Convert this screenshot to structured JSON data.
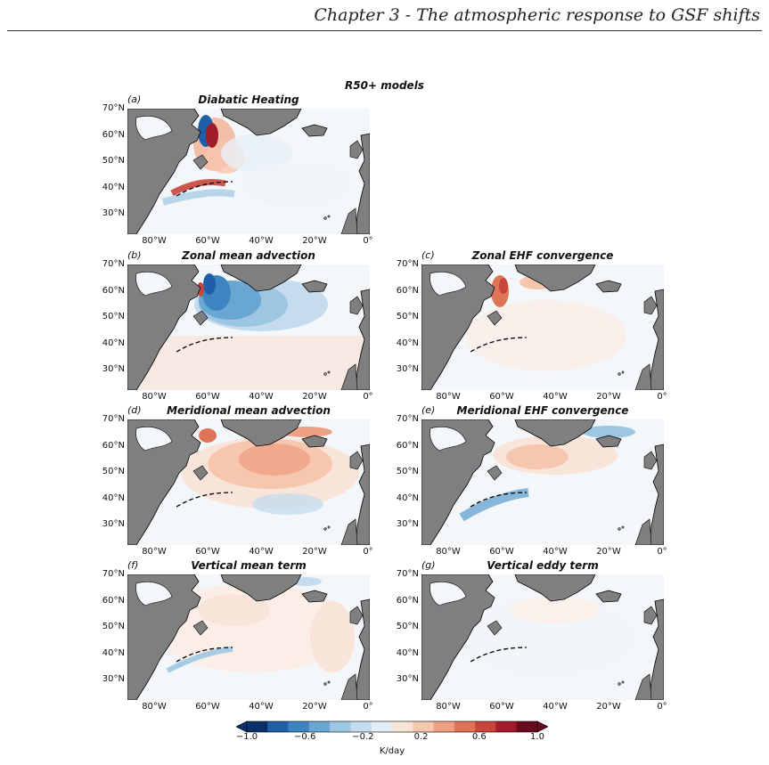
{
  "header": {
    "chapter": "Chapter 3 - The atmospheric response to GSF shifts"
  },
  "figure": {
    "suptitle": "R50+ models",
    "colors": {
      "land": "#7f7f7f",
      "ocean": "#f4f7f9",
      "dashed_front": "#000000"
    },
    "panels": [
      {
        "id": "a",
        "label": "(a)",
        "title": "Diabatic Heating",
        "yticks": [
          "70°N",
          "60°N",
          "50°N",
          "40°N",
          "30°N"
        ],
        "xticks": [
          "80°W",
          "60°W",
          "40°W",
          "20°W",
          "0°"
        ]
      },
      {
        "id": "b",
        "label": "(b)",
        "title": "Zonal mean advection",
        "yticks": [
          "70°N",
          "60°N",
          "50°N",
          "40°N",
          "30°N"
        ],
        "xticks": [
          "80°W",
          "60°W",
          "40°W",
          "20°W",
          "0°"
        ]
      },
      {
        "id": "c",
        "label": "(c)",
        "title": "Zonal EHF convergence",
        "yticks": [
          "70°N",
          "60°N",
          "50°N",
          "40°N",
          "30°N"
        ],
        "xticks": [
          "80°W",
          "60°W",
          "40°W",
          "20°W",
          "0°"
        ]
      },
      {
        "id": "d",
        "label": "(d)",
        "title": "Meridional mean advection",
        "yticks": [
          "70°N",
          "60°N",
          "50°N",
          "40°N",
          "30°N"
        ],
        "xticks": [
          "80°W",
          "60°W",
          "40°W",
          "20°W",
          "0°"
        ]
      },
      {
        "id": "e",
        "label": "(e)",
        "title": "Meridional EHF convergence",
        "yticks": [
          "70°N",
          "60°N",
          "50°N",
          "40°N",
          "30°N"
        ],
        "xticks": [
          "80°W",
          "60°W",
          "40°W",
          "20°W",
          "0°"
        ]
      },
      {
        "id": "f",
        "label": "(f)",
        "title": "Vertical mean term",
        "yticks": [
          "70°N",
          "60°N",
          "50°N",
          "40°N",
          "30°N"
        ],
        "xticks": [
          "80°W",
          "60°W",
          "40°W",
          "20°W",
          "0°"
        ]
      },
      {
        "id": "g",
        "label": "(g)",
        "title": "Vertical eddy term",
        "yticks": [
          "70°N",
          "60°N",
          "50°N",
          "40°N",
          "30°N"
        ],
        "xticks": [
          "80°W",
          "60°W",
          "40°W",
          "20°W",
          "0°"
        ]
      }
    ],
    "colorbar": {
      "ticks": [
        "−1.0",
        "−0.6",
        "−0.2",
        "0.2",
        "0.6",
        "1.0"
      ],
      "label": "K/day",
      "range": [
        -1.0,
        1.0
      ],
      "colors": [
        "#08306b",
        "#1f5fa8",
        "#3d85c0",
        "#6aa6d2",
        "#9cc6e2",
        "#c5dcee",
        "#e2edf6",
        "#f9e4da",
        "#f6c6ae",
        "#efa184",
        "#e07458",
        "#c8453b",
        "#a01c2b",
        "#6a0a1f"
      ]
    }
  }
}
